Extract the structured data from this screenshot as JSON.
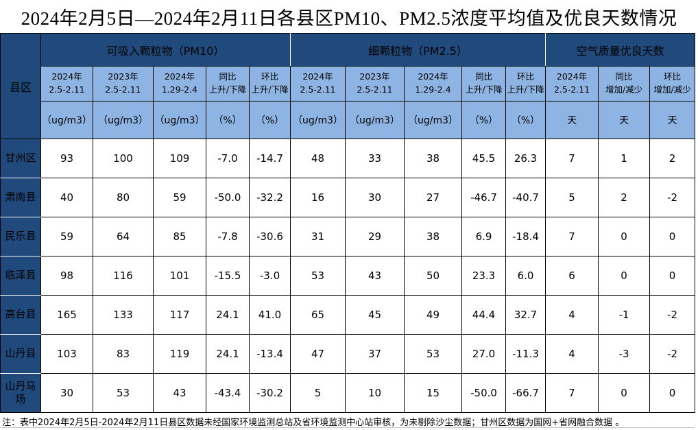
{
  "title": "2024年2月5日—2024年2月11日各县区PM10、PM2.5浓度平均值及优良天数情况",
  "table": {
    "corner_label": "县区",
    "groups": [
      {
        "label": "可吸入颗粒物（PM10）"
      },
      {
        "label": "细颗粒物（PM2.5）"
      },
      {
        "label": "空气质量优良天数"
      }
    ],
    "sub_headers": [
      "2024年\n2.5-2.11",
      "2023年\n2.5-2.11",
      "2024年\n1.29-2.4",
      "同比\n上升/下降",
      "环比\n上升/下降",
      "2024年\n2.5-2.11",
      "2023年\n2.5-2.11",
      "2024年\n1.29-2.4",
      "同比\n上升/下降",
      "环比\n上升/下降",
      "2024年\n2.5-2.11",
      "同比\n增加/减少",
      "环比\n增加/减少"
    ],
    "units": [
      "（ug/m3）",
      "（ug/m3）",
      "（ug/m3）",
      "（%）",
      "（%）",
      "（ug/m3）",
      "（ug/m3）",
      "（ug/m3）",
      "（%）",
      "（%）",
      "天",
      "天",
      "天"
    ],
    "rows": [
      {
        "county": "甘州区",
        "values": [
          "93",
          "100",
          "109",
          "-7.0",
          "-14.7",
          "48",
          "33",
          "38",
          "45.5",
          "26.3",
          "7",
          "1",
          "2"
        ]
      },
      {
        "county": "肃南县",
        "values": [
          "40",
          "80",
          "59",
          "-50.0",
          "-32.2",
          "16",
          "30",
          "27",
          "-46.7",
          "-40.7",
          "5",
          "2",
          "-2"
        ]
      },
      {
        "county": "民乐县",
        "values": [
          "59",
          "64",
          "85",
          "-7.8",
          "-30.6",
          "31",
          "29",
          "38",
          "6.9",
          "-18.4",
          "7",
          "0",
          "0"
        ]
      },
      {
        "county": "临泽县",
        "values": [
          "98",
          "116",
          "101",
          "-15.5",
          "-3.0",
          "53",
          "43",
          "50",
          "23.3",
          "6.0",
          "6",
          "0",
          "0"
        ]
      },
      {
        "county": "高台县",
        "values": [
          "165",
          "133",
          "117",
          "24.1",
          "41.0",
          "65",
          "45",
          "49",
          "44.4",
          "32.7",
          "4",
          "-1",
          "-2"
        ]
      },
      {
        "county": "山丹县",
        "values": [
          "103",
          "83",
          "119",
          "24.1",
          "-13.4",
          "47",
          "37",
          "53",
          "27.0",
          "-11.3",
          "4",
          "-3",
          "-2"
        ]
      },
      {
        "county": "山丹马场",
        "values": [
          "30",
          "53",
          "43",
          "-43.4",
          "-30.2",
          "5",
          "10",
          "15",
          "-50.0",
          "-66.7",
          "7",
          "0",
          "0"
        ]
      }
    ]
  },
  "footnote": "注：表中2024年2月5日-2024年2月11日县区数据未经国家环境监测总站及省环境监测中心站审核，为未剔除沙尘数据；甘州区数据为国网+省网融合数据 。",
  "colors": {
    "header_dark": "#20497c",
    "header_light": "#8db4e2",
    "border": "#000000"
  }
}
